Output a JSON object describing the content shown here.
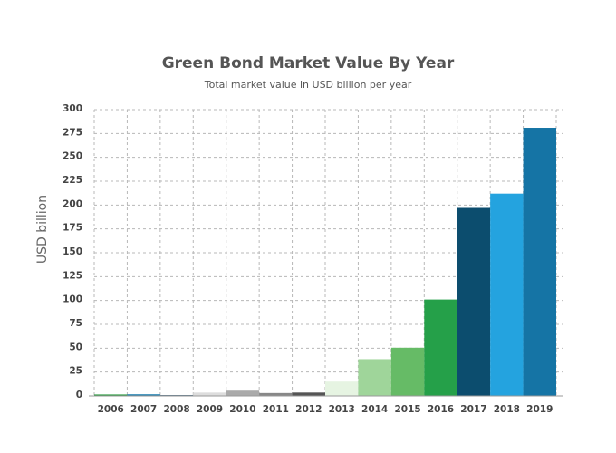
{
  "chart_data": {
    "type": "bar",
    "title": "Green Bond Market Value By Year",
    "subtitle": "Total market value in USD billion per year",
    "xlabel": "",
    "ylabel": "USD billion",
    "categories": [
      "2006",
      "2007",
      "2008",
      "2009",
      "2010",
      "2011",
      "2012",
      "2013",
      "2014",
      "2015",
      "2016",
      "2017",
      "2018",
      "2019"
    ],
    "values": [
      1.5,
      1.7,
      0.8,
      3.5,
      5.5,
      3.0,
      3.5,
      15,
      38.5,
      50.5,
      101,
      197,
      212,
      281
    ],
    "bar_colors": [
      "#2a9b3e",
      "#1f7fb0",
      "#0e3a55",
      "#dddddd",
      "#aaaaaa",
      "#888888",
      "#555555",
      "#e6f4e2",
      "#9fd59a",
      "#66bb66",
      "#25a049",
      "#0c4d6e",
      "#24a3df",
      "#1574a5"
    ],
    "ylim": [
      0,
      300
    ],
    "yticks": [
      0,
      25,
      50,
      75,
      100,
      125,
      150,
      175,
      200,
      225,
      250,
      275,
      300
    ],
    "grid": true
  }
}
